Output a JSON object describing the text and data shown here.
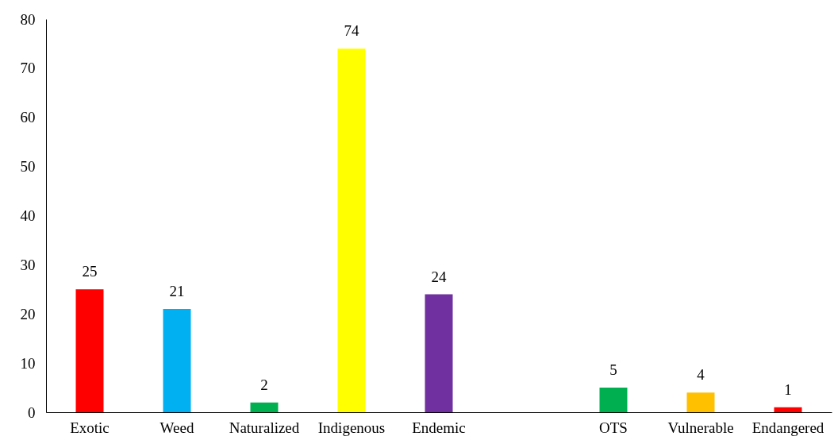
{
  "chart_data": {
    "type": "bar",
    "categories": [
      "Exotic",
      "Weed",
      "Naturalized",
      "Indigenous",
      "Endemic",
      null,
      "OTS",
      "Vulnerable",
      "Endangered"
    ],
    "values": [
      25,
      21,
      2,
      74,
      24,
      null,
      5,
      4,
      1
    ],
    "colors": [
      "#ff0000",
      "#00b0f0",
      "#00b050",
      "#ffff00",
      "#7030a0",
      null,
      "#00b050",
      "#ffc000",
      "#ff0000"
    ],
    "ylim": [
      0,
      80
    ],
    "yticks": [
      0,
      10,
      20,
      30,
      40,
      50,
      60,
      70,
      80
    ],
    "grid": false,
    "data_labels": true
  }
}
